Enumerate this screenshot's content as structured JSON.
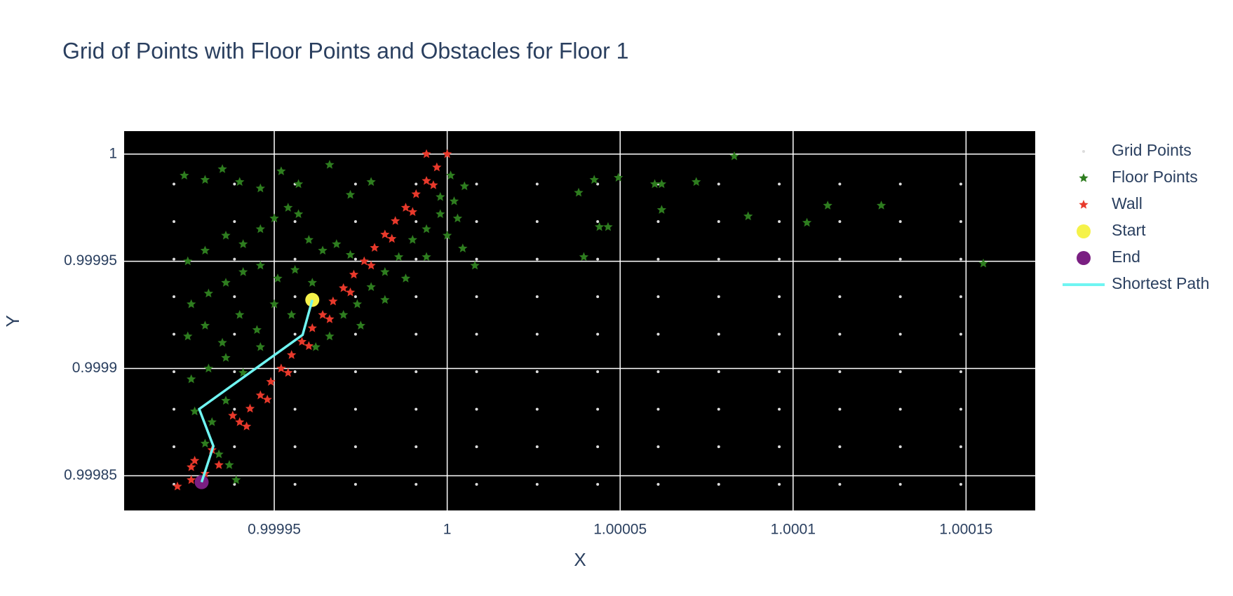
{
  "chart_data": {
    "type": "scatter",
    "title": "Grid of Points with Floor Points and Obstacles for Floor 1",
    "x_label": "X",
    "y_label": "Y",
    "xlim": [
      0.9999066,
      1.00017
    ],
    "ylim": [
      0.9998338,
      1.0000107
    ],
    "xticks": [
      0.99995,
      1,
      1.00005,
      1.0001,
      1.00015
    ],
    "yticks": [
      0.99985,
      0.9999,
      0.99995,
      1
    ],
    "grid": true,
    "legend": "right",
    "series": [
      {
        "name": "Grid Points",
        "mode": "markers",
        "symbol": "circle",
        "size": 2,
        "color": "#dcdcdc",
        "x": [
          0.999921,
          0.9999385,
          0.999956,
          0.9999735,
          0.999991,
          1.0000085,
          1.000026,
          1.0000435,
          1.000061,
          1.0000785,
          1.000096,
          1.0001135,
          1.000131,
          1.0001485,
          0.999921,
          0.9999385,
          0.999956,
          0.9999735,
          0.999991,
          1.0000085,
          1.000026,
          1.0000435,
          1.000061,
          1.0000785,
          1.000096,
          1.0001135,
          1.000131,
          1.0001485,
          0.999921,
          0.9999385,
          0.999956,
          0.9999735,
          0.999991,
          1.0000085,
          1.000026,
          1.0000435,
          1.000061,
          1.0000785,
          1.000096,
          1.0001135,
          1.000131,
          1.0001485,
          0.999921,
          0.9999385,
          0.999956,
          0.9999735,
          0.999991,
          1.0000085,
          1.000026,
          1.0000435,
          1.000061,
          1.0000785,
          1.000096,
          1.0001135,
          1.000131,
          1.0001485,
          0.999921,
          0.9999385,
          0.999956,
          0.9999735,
          0.999991,
          1.0000085,
          1.000026,
          1.0000435,
          1.000061,
          1.0000785,
          1.000096,
          1.0001135,
          1.000131,
          1.0001485,
          0.999921,
          0.9999385,
          0.999956,
          0.9999735,
          0.999991,
          1.0000085,
          1.000026,
          1.0000435,
          1.000061,
          1.0000785,
          1.000096,
          1.0001135,
          1.000131,
          1.0001485,
          0.999921,
          0.9999385,
          0.999956,
          0.9999735,
          0.999991,
          1.0000085,
          1.000026,
          1.0000435,
          1.000061,
          1.0000785,
          1.000096,
          1.0001135,
          1.000131,
          1.0001485,
          0.999921,
          0.9999385,
          0.999956,
          0.9999735,
          0.999991,
          1.0000085,
          1.000026,
          1.0000435,
          1.000061,
          1.0000785,
          1.000096,
          1.0001135,
          1.000131,
          1.0001485,
          0.999921,
          0.9999385,
          0.999956,
          0.9999735,
          0.999991,
          1.0000085,
          1.000026,
          1.0000435,
          1.000061,
          1.0000785,
          1.000096,
          1.0001135,
          1.000131,
          1.0001485
        ],
        "y": [
          0.999986,
          0.999986,
          0.999986,
          0.999986,
          0.999986,
          0.999986,
          0.999986,
          0.999986,
          0.999986,
          0.999986,
          0.999986,
          0.999986,
          0.999986,
          0.999986,
          0.9999685,
          0.9999685,
          0.9999685,
          0.9999685,
          0.9999685,
          0.9999685,
          0.9999685,
          0.9999685,
          0.9999685,
          0.9999685,
          0.9999685,
          0.9999685,
          0.9999685,
          0.9999685,
          0.999951,
          0.999951,
          0.999951,
          0.999951,
          0.999951,
          0.999951,
          0.999951,
          0.999951,
          0.999951,
          0.999951,
          0.999951,
          0.999951,
          0.999951,
          0.999951,
          0.9999335,
          0.9999335,
          0.9999335,
          0.9999335,
          0.9999335,
          0.9999335,
          0.9999335,
          0.9999335,
          0.9999335,
          0.9999335,
          0.9999335,
          0.9999335,
          0.9999335,
          0.9999335,
          0.999916,
          0.999916,
          0.999916,
          0.999916,
          0.999916,
          0.999916,
          0.999916,
          0.999916,
          0.999916,
          0.999916,
          0.999916,
          0.999916,
          0.999916,
          0.999916,
          0.9998985,
          0.9998985,
          0.9998985,
          0.9998985,
          0.9998985,
          0.9998985,
          0.9998985,
          0.9998985,
          0.9998985,
          0.9998985,
          0.9998985,
          0.9998985,
          0.9998985,
          0.9998985,
          0.999881,
          0.999881,
          0.999881,
          0.999881,
          0.999881,
          0.999881,
          0.999881,
          0.999881,
          0.999881,
          0.999881,
          0.999881,
          0.999881,
          0.999881,
          0.999881,
          0.9998635,
          0.9998635,
          0.9998635,
          0.9998635,
          0.9998635,
          0.9998635,
          0.9998635,
          0.9998635,
          0.9998635,
          0.9998635,
          0.9998635,
          0.9998635,
          0.9998635,
          0.9998635,
          0.999846,
          0.999846,
          0.999846,
          0.999846,
          0.999846,
          0.999846,
          0.999846,
          0.999846,
          0.999846,
          0.999846,
          0.999846,
          0.999846,
          0.999846,
          0.999846
        ]
      },
      {
        "name": "Floor Points",
        "mode": "markers",
        "symbol": "star",
        "size": 7,
        "color": "#2e7d1f",
        "x": [
          0.999924,
          0.99993,
          0.999935,
          0.99994,
          0.999946,
          0.999952,
          0.999957,
          0.999966,
          0.999972,
          0.999978,
          0.999925,
          0.99993,
          0.999936,
          0.999941,
          0.999946,
          0.99995,
          0.999954,
          0.999957,
          0.99996,
          0.999964,
          0.999968,
          0.999972,
          0.999926,
          0.999931,
          0.999936,
          0.999941,
          0.999946,
          0.999951,
          0.999956,
          0.999961,
          0.999925,
          0.99993,
          0.999935,
          0.99994,
          0.999945,
          0.99995,
          0.999955,
          0.999926,
          0.999931,
          0.999936,
          0.999941,
          0.999946,
          0.999927,
          0.999932,
          0.999936,
          0.99993,
          0.999934,
          0.999937,
          0.999939,
          0.999962,
          0.999966,
          0.99997,
          0.999974,
          0.999978,
          0.999982,
          0.999986,
          0.99999,
          0.999994,
          0.999998,
          1.000002,
          1.000005,
          0.999975,
          0.999982,
          0.999988,
          0.999994,
          1.0,
          1.000003,
          0.999998,
          1.000001,
          1.000083,
          1.000155,
          1.0001255,
          1.00011,
          1.000104,
          1.000087,
          1.000072,
          1.000062,
          1.00006,
          1.000062,
          1.0000495,
          1.0000425,
          1.000038,
          1.0000465,
          1.000044,
          1.0000395,
          1.000008,
          1.0000045
        ],
        "y": [
          0.99999,
          0.999988,
          0.999993,
          0.999987,
          0.999984,
          0.999992,
          0.999986,
          0.999995,
          0.999981,
          0.999987,
          0.99995,
          0.999955,
          0.999962,
          0.999958,
          0.999965,
          0.99997,
          0.999975,
          0.999972,
          0.99996,
          0.999955,
          0.999958,
          0.999953,
          0.99993,
          0.999935,
          0.99994,
          0.999945,
          0.999948,
          0.999942,
          0.999946,
          0.99994,
          0.999915,
          0.99992,
          0.999912,
          0.999925,
          0.999918,
          0.99993,
          0.999925,
          0.999895,
          0.9999,
          0.999905,
          0.999898,
          0.99991,
          0.99988,
          0.999875,
          0.999885,
          0.999865,
          0.99986,
          0.999855,
          0.999848,
          0.99991,
          0.999915,
          0.999925,
          0.99993,
          0.999938,
          0.999945,
          0.999952,
          0.99996,
          0.999965,
          0.999972,
          0.999978,
          0.999985,
          0.99992,
          0.999932,
          0.999942,
          0.999952,
          0.999962,
          0.99997,
          0.99998,
          0.99999,
          0.999999,
          0.999949,
          0.999976,
          0.999976,
          0.999968,
          0.999971,
          0.999987,
          0.999986,
          0.999986,
          0.999974,
          0.999989,
          0.999988,
          0.999982,
          0.999966,
          0.999966,
          0.999952,
          0.999948,
          0.999956
        ]
      },
      {
        "name": "Wall",
        "mode": "markers",
        "symbol": "star",
        "size": 7,
        "color": "#e8392b",
        "x": [
          0.99994,
          0.999943,
          0.999946,
          0.999949,
          0.999952,
          0.999955,
          0.999958,
          0.999961,
          0.999964,
          0.999967,
          0.99997,
          0.999973,
          0.999976,
          0.999979,
          0.999982,
          0.999985,
          0.999988,
          0.999991,
          0.999994,
          0.999997,
          1.0,
          0.999942,
          0.999948,
          0.999954,
          0.99996,
          0.999966,
          0.999972,
          0.999978,
          0.999984,
          0.99999,
          0.999996,
          0.999922,
          0.999926,
          0.99993,
          0.999934,
          0.999926,
          0.999932,
          0.999927,
          0.999994,
          0.999938
        ],
        "y": [
          0.999875,
          0.9998813,
          0.9998875,
          0.9998938,
          0.9999,
          0.9999063,
          0.9999125,
          0.9999188,
          0.999925,
          0.9999313,
          0.9999375,
          0.9999438,
          0.99995,
          0.9999563,
          0.9999625,
          0.9999688,
          0.999975,
          0.9999813,
          0.9999875,
          0.9999938,
          1.0,
          0.999873,
          0.9998855,
          0.999898,
          0.9999105,
          0.999923,
          0.9999355,
          0.999948,
          0.9999605,
          0.999973,
          0.9999855,
          0.999845,
          0.999848,
          0.999851,
          0.999855,
          0.999854,
          0.999862,
          0.999857,
          1.0,
          0.999878
        ]
      },
      {
        "name": "Start",
        "mode": "markers",
        "symbol": "circle",
        "size": 10,
        "color": "#f5f24a",
        "x": [
          0.999961
        ],
        "y": [
          0.999932
        ]
      },
      {
        "name": "End",
        "mode": "markers",
        "symbol": "circle",
        "size": 10,
        "color": "#7a1f82",
        "x": [
          0.999929
        ],
        "y": [
          0.999847
        ]
      },
      {
        "name": "Shortest Path",
        "mode": "lines",
        "color": "#6ff5f2",
        "x": [
          0.999961,
          0.9999582,
          0.9999283,
          0.9999324,
          0.999929
        ],
        "y": [
          0.999932,
          0.9999157,
          0.9998811,
          0.9998638,
          0.999847
        ]
      }
    ]
  }
}
